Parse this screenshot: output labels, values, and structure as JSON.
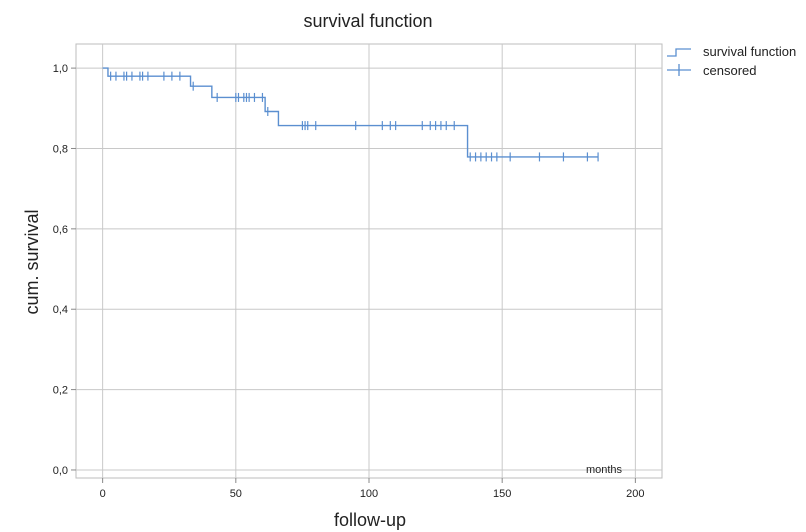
{
  "chart_data": {
    "type": "line",
    "title": "survival function",
    "xlabel": "follow-up",
    "ylabel": "cum. survival",
    "x_unit_label": "months",
    "xlim": [
      -10,
      210
    ],
    "ylim": [
      -0.02,
      1.06
    ],
    "x_ticks": [
      0,
      50,
      100,
      150,
      200
    ],
    "x_tick_labels": [
      "0",
      "50",
      "100",
      "150",
      "200"
    ],
    "y_ticks": [
      0.0,
      0.2,
      0.4,
      0.6,
      0.8,
      1.0
    ],
    "y_tick_labels": [
      "0,0",
      "0,2",
      "0,4",
      "0,6",
      "0,8",
      "1,0"
    ],
    "grid": true,
    "legend_position": "top-right",
    "line_color": "#5b8fd0",
    "series": [
      {
        "name": "survival function",
        "step_x": [
          0,
          2,
          33,
          41,
          61,
          66,
          137,
          186
        ],
        "step_y": [
          1.0,
          0.98,
          0.955,
          0.927,
          0.892,
          0.857,
          0.779,
          0.779
        ]
      },
      {
        "name": "censored",
        "x": [
          3,
          5,
          8,
          9,
          11,
          14,
          15,
          17,
          23,
          26,
          29,
          34,
          43,
          50,
          51,
          53,
          54,
          55,
          57,
          60,
          62,
          75,
          76,
          77,
          80,
          95,
          105,
          108,
          110,
          120,
          123,
          125,
          127,
          129,
          132,
          138,
          140,
          142,
          144,
          146,
          148,
          153,
          164,
          173,
          182,
          186
        ],
        "y": [
          0.98,
          0.98,
          0.98,
          0.98,
          0.98,
          0.98,
          0.98,
          0.98,
          0.98,
          0.98,
          0.98,
          0.955,
          0.927,
          0.927,
          0.927,
          0.927,
          0.927,
          0.927,
          0.927,
          0.927,
          0.892,
          0.857,
          0.857,
          0.857,
          0.857,
          0.857,
          0.857,
          0.857,
          0.857,
          0.857,
          0.857,
          0.857,
          0.857,
          0.857,
          0.857,
          0.779,
          0.779,
          0.779,
          0.779,
          0.779,
          0.779,
          0.779,
          0.779,
          0.779,
          0.779,
          0.779
        ]
      }
    ]
  }
}
